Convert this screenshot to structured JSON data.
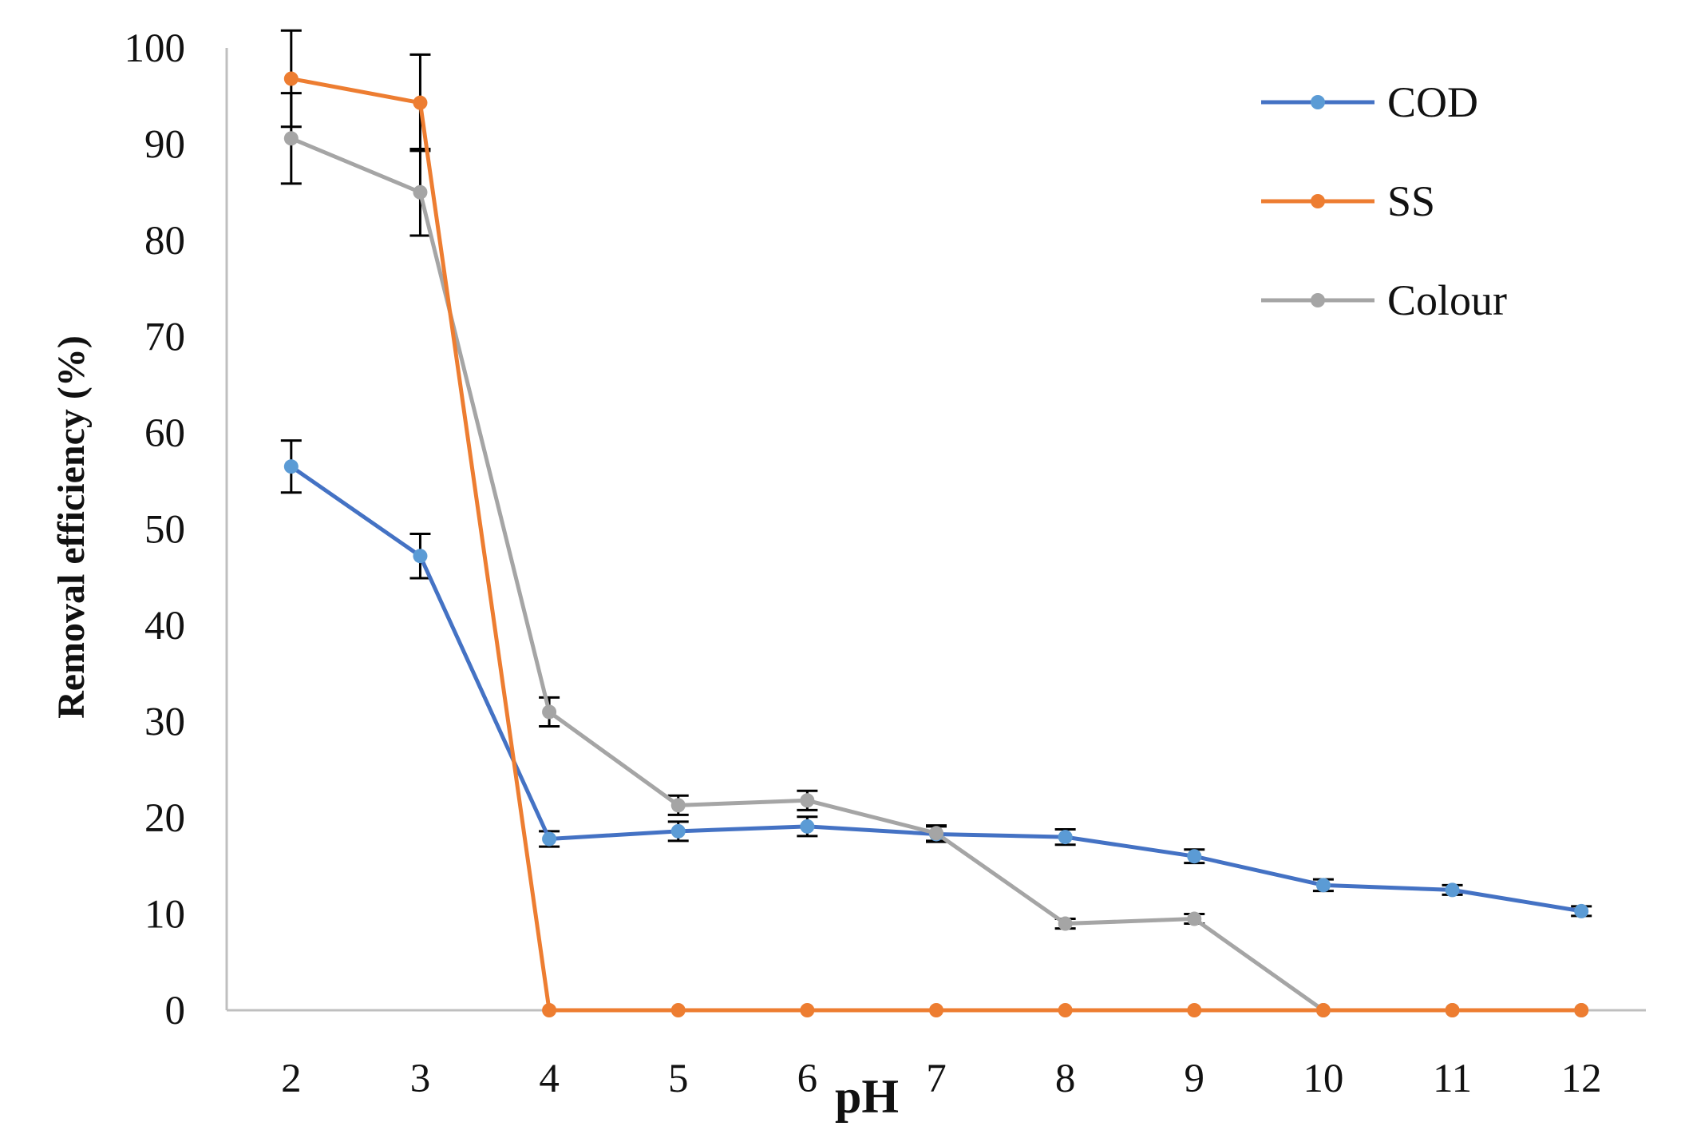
{
  "chart_data": {
    "type": "line",
    "title": "",
    "xlabel": "pH",
    "ylabel": "Removal efficiency (%)",
    "x": [
      2,
      3,
      4,
      5,
      6,
      7,
      8,
      9,
      10,
      11,
      12
    ],
    "x_tick_labels": [
      "2",
      "3",
      "4",
      "5",
      "6",
      "7",
      "8",
      "9",
      "10",
      "11",
      "12"
    ],
    "ylim": [
      0,
      100
    ],
    "y_ticks": [
      0,
      10,
      20,
      30,
      40,
      50,
      60,
      70,
      80,
      90,
      100
    ],
    "grid": false,
    "legend_position": "top-right",
    "series": [
      {
        "name": "COD",
        "color": "#4472C4",
        "marker_color": "#5B9BD5",
        "values": [
          56.5,
          47.2,
          17.8,
          18.6,
          19.1,
          18.3,
          18.0,
          16.0,
          13.0,
          12.5,
          10.3
        ],
        "errors": [
          2.7,
          2.3,
          0.8,
          1.0,
          1.0,
          0.8,
          0.8,
          0.7,
          0.6,
          0.5,
          0.5
        ]
      },
      {
        "name": "SS",
        "color": "#ED7D31",
        "marker_color": "#ED7D31",
        "values": [
          96.8,
          94.3,
          0,
          0,
          0,
          0,
          0,
          0,
          0,
          0,
          0
        ],
        "errors": [
          5.0,
          5.0,
          0,
          0,
          0,
          0,
          0,
          0,
          0,
          0,
          0
        ]
      },
      {
        "name": "Colour",
        "color": "#A5A5A5",
        "marker_color": "#A5A5A5",
        "values": [
          90.6,
          85.0,
          31.0,
          21.3,
          21.8,
          18.4,
          9.0,
          9.5,
          0,
          0,
          0
        ],
        "errors": [
          4.7,
          4.5,
          1.5,
          1.0,
          1.0,
          0.8,
          0.5,
          0.5,
          0,
          0,
          0
        ]
      }
    ]
  }
}
